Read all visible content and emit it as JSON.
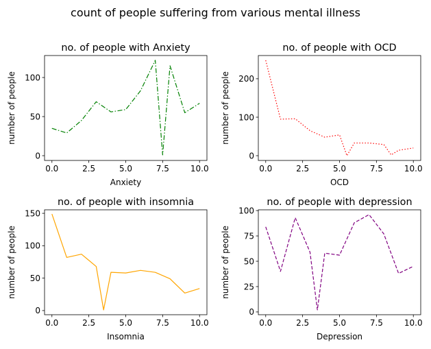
{
  "suptitle": "count of people suffering from various mental illness",
  "chart_data": [
    {
      "type": "line",
      "title": "no. of people with Anxiety",
      "xlabel": "Anxiety",
      "ylabel": "number of people",
      "xlim": [
        -0.5,
        10.5
      ],
      "ylim": [
        -6.1,
        128.1
      ],
      "xticks": [
        0.0,
        2.5,
        5.0,
        7.5,
        10.0
      ],
      "xtick_labels": [
        "0.0",
        "2.5",
        "5.0",
        "7.5",
        "10.0"
      ],
      "yticks": [
        0,
        50,
        100
      ],
      "ytick_labels": [
        "0",
        "50",
        "100"
      ],
      "color": "#008000",
      "line_style": "dashdot",
      "grid": false,
      "x": [
        0,
        1,
        2,
        3,
        4,
        5,
        6,
        7,
        7.5,
        8,
        9,
        10
      ],
      "y": [
        35,
        29,
        45,
        69,
        56,
        59,
        83,
        122,
        1,
        115,
        55,
        67
      ]
    },
    {
      "type": "line",
      "title": "no. of people with OCD",
      "xlabel": "OCD",
      "ylabel": "number of people",
      "xlim": [
        -0.5,
        10.5
      ],
      "ylim": [
        -12.4,
        260.4
      ],
      "xticks": [
        0.0,
        2.5,
        5.0,
        7.5,
        10.0
      ],
      "xtick_labels": [
        "0.0",
        "2.5",
        "5.0",
        "7.5",
        "10.0"
      ],
      "yticks": [
        0,
        100,
        200
      ],
      "ytick_labels": [
        "0",
        "100",
        "200"
      ],
      "color": "#ff0000",
      "line_style": "dotted",
      "grid": false,
      "x": [
        0,
        1,
        2,
        3,
        4,
        5,
        5.5,
        6,
        7,
        8,
        8.5,
        9,
        10
      ],
      "y": [
        248,
        95,
        96,
        65,
        48,
        54,
        0,
        33,
        33,
        29,
        2,
        14,
        20
      ]
    },
    {
      "type": "line",
      "title": "no. of people with insomnia",
      "xlabel": "Insomnia",
      "ylabel": "number of people",
      "xlim": [
        -0.5,
        10.5
      ],
      "ylim": [
        -6.4,
        155.4
      ],
      "xticks": [
        0.0,
        2.5,
        5.0,
        7.5,
        10.0
      ],
      "xtick_labels": [
        "0.0",
        "2.5",
        "5.0",
        "7.5",
        "10.0"
      ],
      "yticks": [
        0,
        50,
        100,
        150
      ],
      "ytick_labels": [
        "0",
        "50",
        "100",
        "150"
      ],
      "color": "#ffa500",
      "line_style": "solid",
      "grid": false,
      "x": [
        0,
        1,
        2,
        3,
        3.5,
        4,
        5,
        6,
        7,
        8,
        9,
        10
      ],
      "y": [
        149,
        82,
        87,
        68,
        1,
        59,
        58,
        62,
        59,
        49,
        27,
        34
      ]
    },
    {
      "type": "line",
      "title": "no. of people with depression",
      "xlabel": "Depression",
      "ylabel": "number of people",
      "xlim": [
        -0.5,
        10.5
      ],
      "ylim": [
        -2.75,
        100.75
      ],
      "xticks": [
        0.0,
        2.5,
        5.0,
        7.5,
        10.0
      ],
      "xtick_labels": [
        "0.0",
        "2.5",
        "5.0",
        "7.5",
        "10.0"
      ],
      "yticks": [
        0,
        25,
        50,
        75,
        100
      ],
      "ytick_labels": [
        "0",
        "25",
        "50",
        "75",
        "100"
      ],
      "color": "#800080",
      "line_style": "dashed",
      "grid": false,
      "x": [
        0,
        1,
        2,
        3,
        3.5,
        4,
        5,
        6,
        7,
        8,
        9,
        10
      ],
      "y": [
        84,
        40,
        93,
        59,
        2,
        58,
        56,
        88,
        96,
        77,
        38,
        45
      ]
    }
  ]
}
